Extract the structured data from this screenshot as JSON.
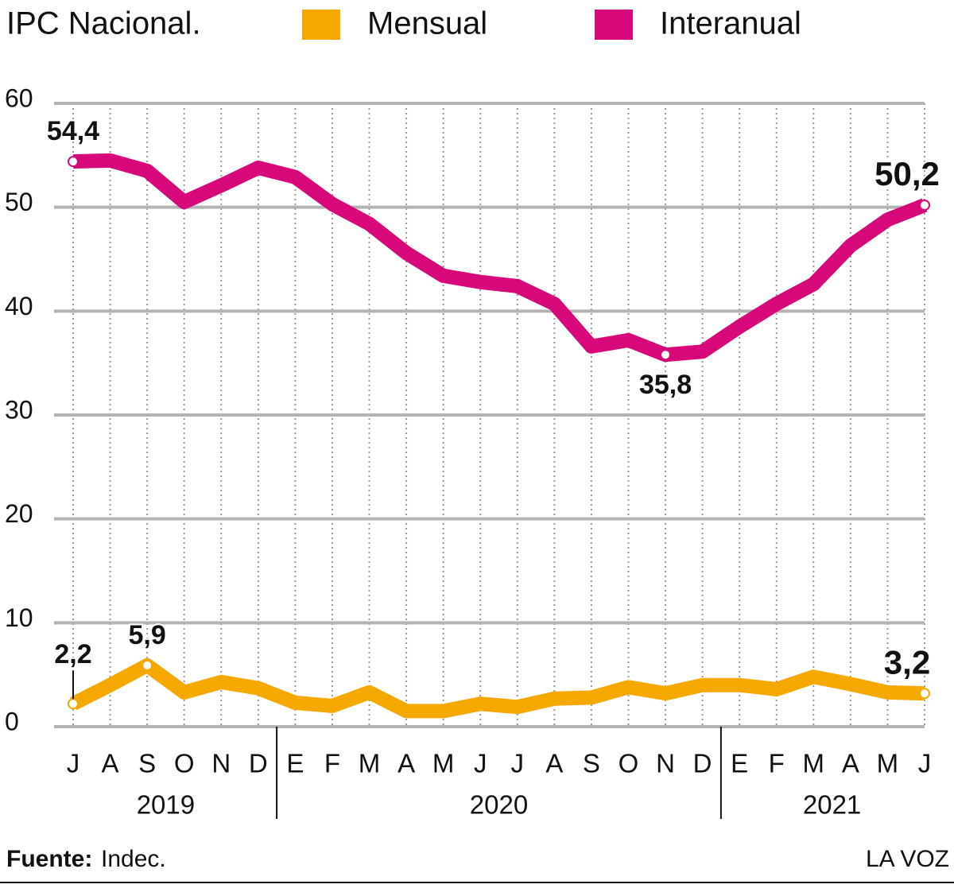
{
  "chart_data": {
    "type": "line",
    "title": "IPC Nacional.",
    "categories": [
      "J",
      "A",
      "S",
      "O",
      "N",
      "D",
      "E",
      "F",
      "M",
      "A",
      "M",
      "J",
      "J",
      "A",
      "S",
      "O",
      "N",
      "D",
      "E",
      "F",
      "M",
      "A",
      "M",
      "J"
    ],
    "year_groups": [
      {
        "label": "2019",
        "count": 6
      },
      {
        "label": "2020",
        "count": 12
      },
      {
        "label": "2021",
        "count": 6
      }
    ],
    "series": [
      {
        "name": "Mensual",
        "color": "#f5a800",
        "values": [
          2.2,
          4.0,
          5.9,
          3.3,
          4.3,
          3.7,
          2.3,
          2.0,
          3.3,
          1.5,
          1.5,
          2.2,
          1.9,
          2.7,
          2.8,
          3.8,
          3.2,
          4.0,
          4.0,
          3.6,
          4.8,
          4.1,
          3.3,
          3.2
        ],
        "value_labels": [
          "2,2",
          null,
          "5,9",
          null,
          null,
          null,
          null,
          null,
          null,
          null,
          null,
          null,
          null,
          null,
          null,
          null,
          null,
          null,
          null,
          null,
          null,
          null,
          null,
          "3,2"
        ]
      },
      {
        "name": "Interanual",
        "color": "#d6087a",
        "values": [
          54.4,
          54.5,
          53.5,
          50.5,
          52.1,
          53.8,
          52.9,
          50.3,
          48.4,
          45.6,
          43.4,
          42.8,
          42.4,
          40.7,
          36.6,
          37.2,
          35.8,
          36.1,
          38.5,
          40.7,
          42.6,
          46.3,
          48.8,
          50.2
        ],
        "value_labels": [
          "54,4",
          null,
          null,
          null,
          null,
          null,
          null,
          null,
          null,
          null,
          null,
          null,
          null,
          null,
          null,
          null,
          "35,8",
          null,
          null,
          null,
          null,
          null,
          null,
          "50,2"
        ]
      }
    ],
    "ylim": [
      0,
      60
    ],
    "yticks": [
      0,
      10,
      20,
      30,
      40,
      50,
      60
    ],
    "grid": true,
    "source_label": "Fuente:",
    "source": "Indec.",
    "credit": "LA VOZ"
  }
}
